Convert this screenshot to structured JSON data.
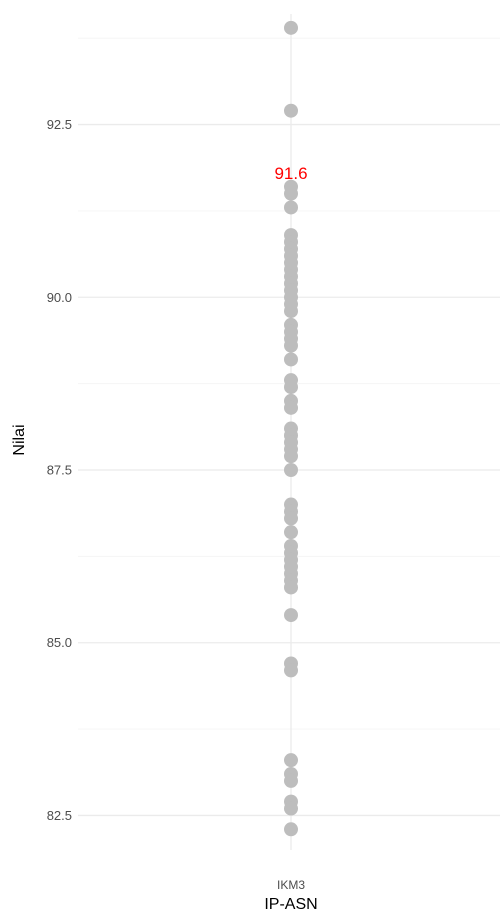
{
  "chart_data": {
    "type": "scatter",
    "xlabel": "IP-ASN",
    "ylabel": "Nilai",
    "categories": [
      "IKM3"
    ],
    "ylim": [
      82.0,
      94.1
    ],
    "y_ticks": [
      "82.5",
      "85.0",
      "87.5",
      "90.0",
      "92.5"
    ],
    "y_tick_values": [
      82.5,
      85.0,
      87.5,
      90.0,
      92.5
    ],
    "grid": true,
    "series": [
      {
        "category": "IKM3",
        "color": "#bdbdbd",
        "values": [
          93.9,
          92.7,
          91.6,
          91.5,
          91.3,
          90.9,
          90.8,
          90.7,
          90.6,
          90.5,
          90.4,
          90.3,
          90.2,
          90.1,
          90.0,
          89.9,
          89.8,
          89.6,
          89.5,
          89.4,
          89.3,
          89.1,
          88.8,
          88.7,
          88.5,
          88.4,
          88.1,
          88.0,
          87.9,
          87.8,
          87.7,
          87.5,
          87.0,
          86.9,
          86.8,
          86.6,
          86.4,
          86.3,
          86.2,
          86.1,
          86.0,
          85.9,
          85.8,
          85.4,
          84.7,
          84.6,
          83.3,
          83.1,
          83.0,
          82.7,
          82.6,
          82.3
        ]
      }
    ],
    "annotations": [
      {
        "category": "IKM3",
        "text": "91.6",
        "y": 91.8,
        "color": "#ff0000"
      }
    ]
  }
}
